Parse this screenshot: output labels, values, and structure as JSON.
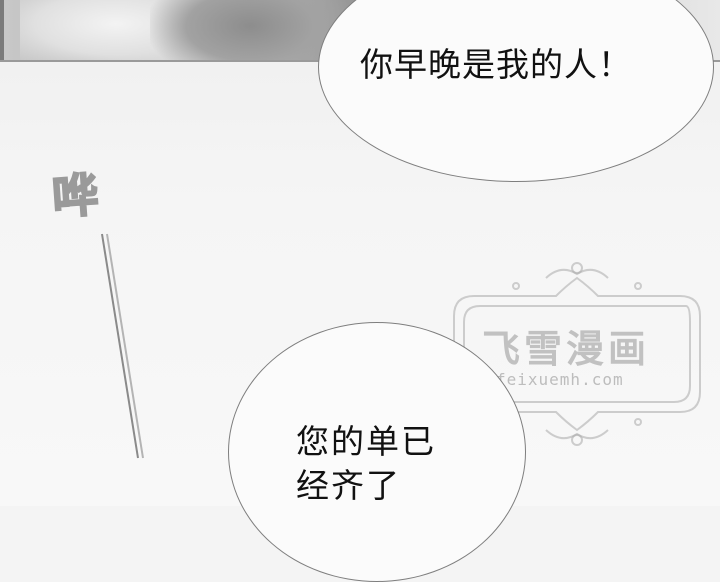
{
  "top_bubble": {
    "text": "你早晚是我的人！"
  },
  "bottom_bubble": {
    "lines": [
      "您的单已",
      "经齐了"
    ]
  },
  "sound_effect": {
    "text": "哗"
  },
  "watermark": {
    "title": "飞雪漫画",
    "url": "feixuemh.com"
  },
  "colors": {
    "bubble_fill": "#fbfbfb",
    "bubble_stroke": "#7e7e7e",
    "text": "#111111",
    "watermark": "#969696"
  }
}
